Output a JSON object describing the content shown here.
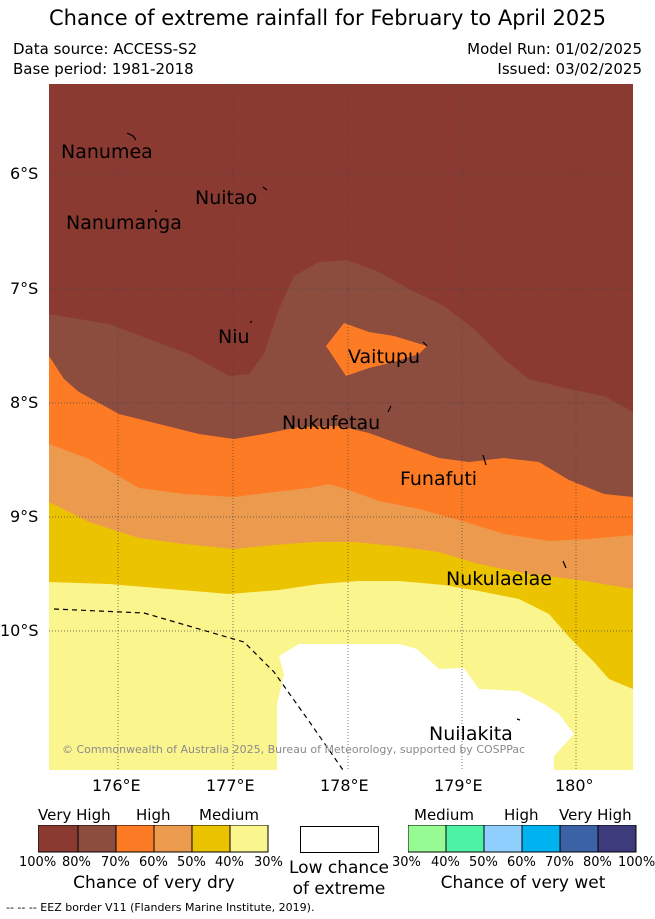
{
  "header": {
    "title": "Chance of extreme rainfall for February to April 2025",
    "data_source": "Data source: ACCESS-S2",
    "base_period": "Base period: 1981-2018",
    "model_run": "Model Run: 01/02/2025",
    "issued": "Issued: 03/02/2025"
  },
  "map": {
    "lat_labels": [
      "6°S",
      "7°S",
      "8°S",
      "9°S",
      "10°S"
    ],
    "lon_labels": [
      "176°E",
      "177°E",
      "178°E",
      "179°E",
      "180°"
    ],
    "places": [
      "Nanumea",
      "Nuitao",
      "Nanumanga",
      "Niu",
      "Vaitupu",
      "Nukufetau",
      "Funafuti",
      "Nukulaelae",
      "Nuilakita"
    ],
    "copyright": "© Commonwealth of Australia 2025, Bureau of Meteorology, supported by COSPPac",
    "colors": {
      "dry_100_80": "#8b3a32",
      "dry_80_70": "#8c4c3e",
      "dry_70_60": "#fe7b25",
      "dry_60_50": "#ec9a4e",
      "dry_50_40": "#ecc300",
      "dry_40_30": "#fbf58e",
      "low": "#ffffff"
    }
  },
  "legend": {
    "dry": {
      "headings": [
        "Very High",
        "High",
        "Medium"
      ],
      "ticks": [
        "100%",
        "80%",
        "70%",
        "60%",
        "50%",
        "40%",
        "30%"
      ],
      "caption": "Chance of very dry",
      "colors": [
        "#8b3a32",
        "#8c4c3e",
        "#fe7b25",
        "#ec9a4e",
        "#ecc300",
        "#fbf58e"
      ]
    },
    "low": {
      "caption_line1": "Low chance",
      "caption_line2": "of extreme"
    },
    "wet": {
      "headings": [
        "Medium",
        "High",
        "Very High"
      ],
      "ticks": [
        "30%",
        "40%",
        "50%",
        "60%",
        "70%",
        "80%",
        "100%"
      ],
      "caption": "Chance of very wet",
      "colors": [
        "#97fb94",
        "#4ef3a6",
        "#8ecffd",
        "#00b3f0",
        "#3b62a4",
        "#3d3b7c"
      ]
    }
  },
  "footer": {
    "eez_note": "-- -- -- EEZ border V11 (Flanders Marine Institute, 2019)."
  }
}
